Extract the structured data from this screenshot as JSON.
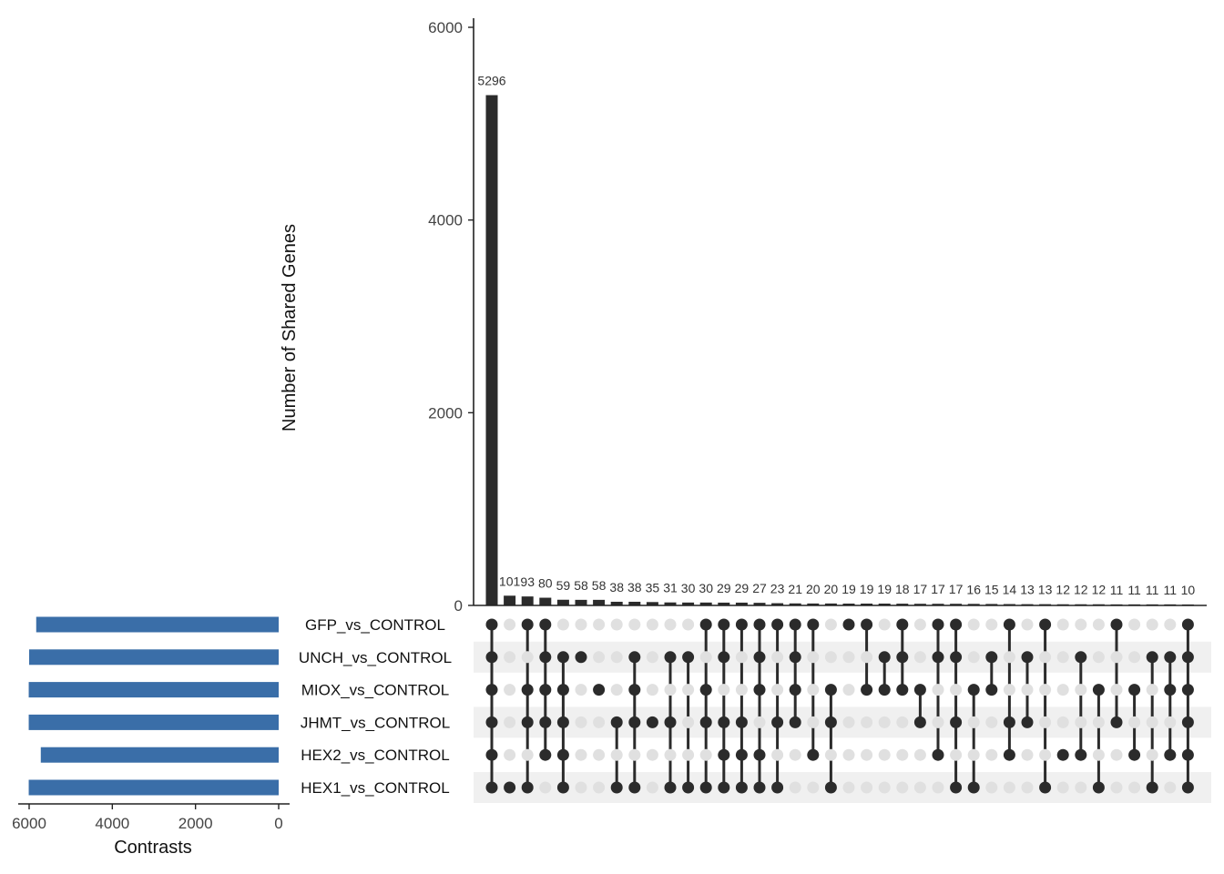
{
  "chart_data": {
    "type": "bar",
    "subtype": "upset",
    "ylabel": "Number of Shared Genes",
    "xlabel_sets": "Contrasts",
    "ylim": [
      0,
      6000
    ],
    "yticks": [
      0,
      2000,
      4000,
      6000
    ],
    "set_size_ticks": [
      6000,
      4000,
      2000,
      0
    ],
    "set_size_axis_range": [
      0,
      6000
    ],
    "bar_color": "#2b2b2b",
    "set_bar_color": "#3a6ea8",
    "dot_active_color": "#2b2b2b",
    "dot_inactive_color": "#e0e0e0",
    "stripe_color": "#f0f0f0",
    "sets": [
      {
        "name": "GFP_vs_CONTROL",
        "size": 5830
      },
      {
        "name": "UNCH_vs_CONTROL",
        "size": 6000
      },
      {
        "name": "MIOX_vs_CONTROL",
        "size": 6010
      },
      {
        "name": "JHMT_vs_CONTROL",
        "size": 6010
      },
      {
        "name": "HEX2_vs_CONTROL",
        "size": 5720
      },
      {
        "name": "HEX1_vs_CONTROL",
        "size": 6010
      }
    ],
    "intersections": [
      {
        "value": 5296,
        "sets": [
          0,
          1,
          2,
          3,
          4,
          5
        ]
      },
      {
        "value": 101,
        "sets": [
          5
        ]
      },
      {
        "value": 93,
        "sets": [
          0,
          2,
          3,
          5
        ]
      },
      {
        "value": 80,
        "sets": [
          0,
          1,
          2,
          3,
          4
        ]
      },
      {
        "value": 59,
        "sets": [
          1,
          2,
          3,
          4,
          5
        ]
      },
      {
        "value": 58,
        "sets": [
          1
        ]
      },
      {
        "value": 58,
        "sets": [
          2
        ]
      },
      {
        "value": 38,
        "sets": [
          3,
          5
        ]
      },
      {
        "value": 38,
        "sets": [
          1,
          2,
          3,
          5
        ]
      },
      {
        "value": 35,
        "sets": [
          3
        ]
      },
      {
        "value": 31,
        "sets": [
          1,
          3,
          5
        ]
      },
      {
        "value": 30,
        "sets": [
          1,
          5
        ]
      },
      {
        "value": 30,
        "sets": [
          0,
          2,
          3,
          5
        ]
      },
      {
        "value": 29,
        "sets": [
          0,
          1,
          3,
          4,
          5
        ]
      },
      {
        "value": 29,
        "sets": [
          0,
          3,
          4,
          5
        ]
      },
      {
        "value": 27,
        "sets": [
          0,
          1,
          2,
          4,
          5
        ]
      },
      {
        "value": 23,
        "sets": [
          0,
          3,
          5
        ]
      },
      {
        "value": 21,
        "sets": [
          0,
          1,
          2,
          3
        ]
      },
      {
        "value": 20,
        "sets": [
          0,
          4
        ]
      },
      {
        "value": 20,
        "sets": [
          2,
          3,
          5
        ]
      },
      {
        "value": 19,
        "sets": [
          0
        ]
      },
      {
        "value": 19,
        "sets": [
          0,
          2
        ]
      },
      {
        "value": 19,
        "sets": [
          1,
          2
        ]
      },
      {
        "value": 18,
        "sets": [
          0,
          1,
          2
        ]
      },
      {
        "value": 17,
        "sets": [
          2,
          3
        ]
      },
      {
        "value": 17,
        "sets": [
          0,
          1,
          4
        ]
      },
      {
        "value": 17,
        "sets": [
          0,
          1,
          3,
          5
        ]
      },
      {
        "value": 16,
        "sets": [
          2,
          5
        ]
      },
      {
        "value": 15,
        "sets": [
          1,
          2
        ]
      },
      {
        "value": 14,
        "sets": [
          0,
          3,
          4
        ]
      },
      {
        "value": 13,
        "sets": [
          1,
          3
        ]
      },
      {
        "value": 13,
        "sets": [
          0,
          5
        ]
      },
      {
        "value": 12,
        "sets": [
          4
        ]
      },
      {
        "value": 12,
        "sets": [
          1,
          4
        ]
      },
      {
        "value": 12,
        "sets": [
          2,
          5
        ]
      },
      {
        "value": 11,
        "sets": [
          0,
          3
        ]
      },
      {
        "value": 11,
        "sets": [
          2,
          4
        ]
      },
      {
        "value": 11,
        "sets": [
          1,
          5
        ]
      },
      {
        "value": 11,
        "sets": [
          1,
          2,
          4
        ]
      },
      {
        "value": 10,
        "sets": [
          0,
          1,
          2,
          3,
          4,
          5
        ]
      }
    ]
  }
}
